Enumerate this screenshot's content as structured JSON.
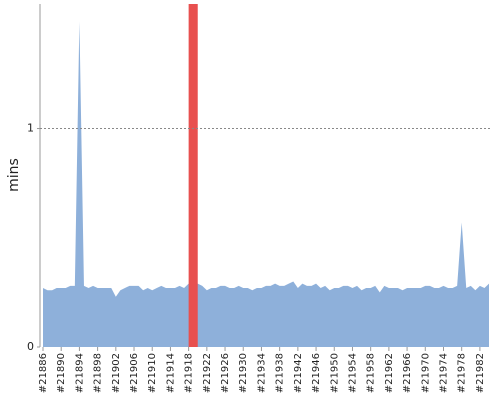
{
  "chart_data": {
    "type": "area",
    "y_label": "mins",
    "categories": [
      "#21886",
      null,
      null,
      null,
      "#21890",
      null,
      null,
      null,
      "#21894",
      null,
      null,
      null,
      "#21898",
      null,
      null,
      null,
      "#21902",
      null,
      null,
      null,
      "#21906",
      null,
      null,
      null,
      "#21910",
      null,
      null,
      null,
      "#21914",
      null,
      null,
      null,
      "#21918",
      null,
      null,
      null,
      "#21922",
      null,
      null,
      null,
      "#21926",
      null,
      null,
      null,
      "#21930",
      null,
      null,
      null,
      "#21934",
      null,
      null,
      null,
      "#21938",
      null,
      null,
      null,
      "#21942",
      null,
      null,
      null,
      "#21946",
      null,
      null,
      null,
      "#21950",
      null,
      null,
      null,
      "#21954",
      null,
      null,
      null,
      "#21958",
      null,
      null,
      null,
      "#21962",
      null,
      null,
      null,
      "#21966",
      null,
      null,
      null,
      "#21970",
      null,
      null,
      null,
      "#21974",
      null,
      null,
      null,
      "#21978",
      null,
      null,
      null,
      "#21982",
      null,
      null
    ],
    "values": [
      0.27,
      0.26,
      0.26,
      0.27,
      0.27,
      0.27,
      0.28,
      0.28,
      1.49,
      0.28,
      0.27,
      0.28,
      0.27,
      0.27,
      0.27,
      0.27,
      0.23,
      0.26,
      0.27,
      0.28,
      0.28,
      0.28,
      0.26,
      0.27,
      0.26,
      0.27,
      0.28,
      0.27,
      0.27,
      0.27,
      0.28,
      0.27,
      0.29,
      0.29,
      0.29,
      0.28,
      0.26,
      0.27,
      0.27,
      0.28,
      0.28,
      0.27,
      0.27,
      0.28,
      0.27,
      0.27,
      0.26,
      0.27,
      0.27,
      0.28,
      0.28,
      0.29,
      0.28,
      0.28,
      0.29,
      0.3,
      0.27,
      0.29,
      0.28,
      0.28,
      0.29,
      0.27,
      0.28,
      0.26,
      0.27,
      0.27,
      0.28,
      0.28,
      0.27,
      0.28,
      0.26,
      0.27,
      0.27,
      0.28,
      0.25,
      0.28,
      0.27,
      0.27,
      0.27,
      0.26,
      0.27,
      0.27,
      0.27,
      0.27,
      0.28,
      0.28,
      0.27,
      0.27,
      0.28,
      0.27,
      0.27,
      0.28,
      0.57,
      0.27,
      0.28,
      0.26,
      0.28,
      0.27,
      0.29
    ],
    "color": "#8eb0da",
    "highlight_index": 33,
    "highlight_color": "#e8504f",
    "ylim": [
      0,
      1.57
    ],
    "yticks": [
      0,
      1
    ],
    "grid": true
  }
}
